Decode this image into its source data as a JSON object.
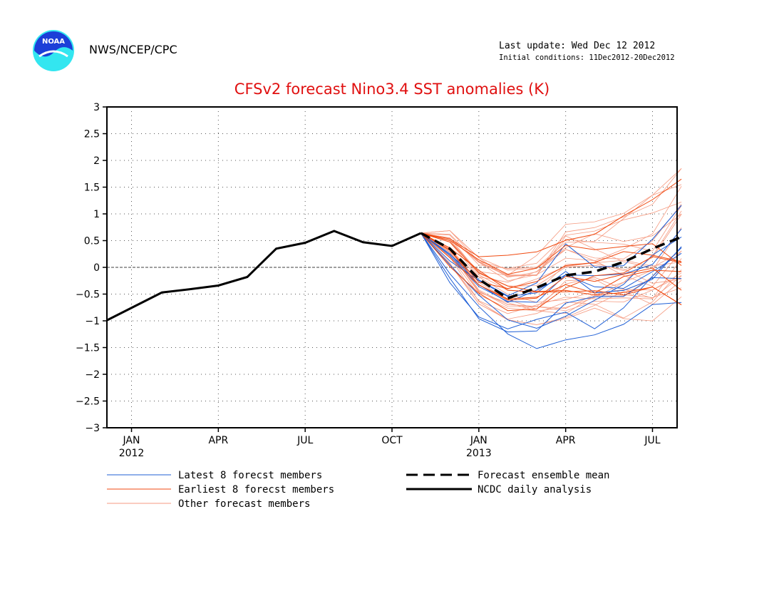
{
  "header": {
    "org": "NWS/NCEP/CPC",
    "last_update": "Last update: Wed Dec 12 2012",
    "initial_conditions": "Initial conditions: 11Dec2012-20Dec2012",
    "logo_text": "NOAA"
  },
  "colors": {
    "title": "#e01010",
    "latest": "#1f5fd6",
    "earliest": "#f04a10",
    "other": "#f59a80",
    "analysis": "#000000"
  },
  "chart_data": {
    "type": "line",
    "title": "CFSv2 forecast Nino3.4 SST anomalies (K)",
    "ylim": [
      -3,
      3
    ],
    "yticks": [
      3,
      2.5,
      2,
      1.5,
      1,
      0.5,
      0,
      -0.5,
      -1,
      -1.5,
      -2,
      -2.5,
      -3
    ],
    "xlim": [
      -0.35,
      19.35
    ],
    "xticks": [
      {
        "month": 0.5,
        "label": "JAN",
        "year": "2012"
      },
      {
        "month": 3.5,
        "label": "APR",
        "year": ""
      },
      {
        "month": 6.5,
        "label": "JUL",
        "year": ""
      },
      {
        "month": 9.5,
        "label": "OCT",
        "year": ""
      },
      {
        "month": 12.5,
        "label": "JAN",
        "year": "2013"
      },
      {
        "month": 15.5,
        "label": "APR",
        "year": ""
      },
      {
        "month": 18.5,
        "label": "JUL",
        "year": ""
      }
    ],
    "grid": true,
    "legend": [
      {
        "key": "latest",
        "label": "Latest 8 forecst members",
        "style": "thin"
      },
      {
        "key": "earliest",
        "label": "Earliest 8 forecst members",
        "style": "thin"
      },
      {
        "key": "other",
        "label": "Other forecast members",
        "style": "thin"
      },
      {
        "key": "ensemble_mean",
        "label": "Forecast ensemble mean",
        "style": "dashed"
      },
      {
        "key": "analysis",
        "label": "NCDC daily analysis",
        "style": "solid"
      }
    ],
    "analysis": {
      "x": [
        -0.35,
        0.6,
        1.55,
        2.5,
        3.5,
        4.5,
        5.5,
        6.5,
        7.5,
        8.5,
        9.5,
        10.5
      ],
      "y": [
        -0.99,
        -0.73,
        -0.47,
        -0.41,
        -0.34,
        -0.18,
        0.35,
        0.46,
        0.68,
        0.47,
        0.4,
        0.64
      ]
    },
    "ensemble_mean": {
      "x": [
        10.5,
        11.5,
        12.5,
        13.5,
        14.5,
        15.5,
        16.5,
        17.5,
        18.5,
        19.5
      ],
      "y": [
        0.64,
        0.35,
        -0.22,
        -0.58,
        -0.38,
        -0.15,
        -0.08,
        0.1,
        0.35,
        0.57
      ]
    },
    "forecast_months": [
      10.5,
      11.5,
      12.5,
      13.5,
      14.5,
      15.5,
      16.5,
      17.5,
      18.5,
      19.5
    ],
    "forecast_envelope": {
      "latest": {
        "low": [
          0.64,
          -0.3,
          -1.0,
          -1.42,
          -1.55,
          -1.4,
          -1.3,
          -1.1,
          -0.8,
          -0.7
        ],
        "high": [
          0.64,
          0.3,
          -0.1,
          -0.3,
          0.0,
          0.8,
          0.55,
          0.6,
          0.9,
          1.45
        ]
      },
      "earliest": {
        "low": [
          0.64,
          0.0,
          -0.6,
          -0.95,
          -0.95,
          -0.8,
          -0.7,
          -0.55,
          -0.4,
          -0.75
        ],
        "high": [
          0.64,
          0.68,
          0.3,
          0.25,
          0.45,
          0.8,
          1.0,
          1.1,
          1.3,
          1.7
        ]
      },
      "other": {
        "low": [
          0.64,
          0.05,
          -0.7,
          -1.0,
          -1.1,
          -1.0,
          -1.0,
          -1.0,
          -1.05,
          -0.6
        ],
        "high": [
          0.64,
          0.7,
          0.2,
          0.0,
          0.25,
          0.9,
          0.95,
          1.05,
          1.4,
          1.9
        ]
      }
    },
    "member_counts": {
      "latest": 8,
      "earliest": 8,
      "other": 24
    }
  }
}
